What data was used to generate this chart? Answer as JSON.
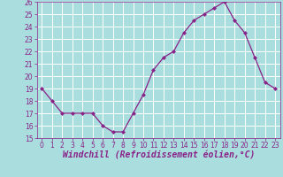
{
  "x": [
    0,
    1,
    2,
    3,
    4,
    5,
    6,
    7,
    8,
    9,
    10,
    11,
    12,
    13,
    14,
    15,
    16,
    17,
    18,
    19,
    20,
    21,
    22,
    23
  ],
  "y": [
    19,
    18,
    17,
    17,
    17,
    17,
    16,
    15.5,
    15.5,
    17,
    18.5,
    20.5,
    21.5,
    22,
    23.5,
    24.5,
    25,
    25.5,
    26,
    24.5,
    23.5,
    21.5,
    19.5,
    19
  ],
  "line_color": "#882288",
  "marker_color": "#882288",
  "bg_color": "#aadddd",
  "grid_color": "#cceeee",
  "xlabel": "Windchill (Refroidissement éolien,°C)",
  "xlabel_color": "#882288",
  "ylim": [
    15,
    26
  ],
  "xlim": [
    -0.5,
    23.5
  ],
  "yticks": [
    15,
    16,
    17,
    18,
    19,
    20,
    21,
    22,
    23,
    24,
    25,
    26
  ],
  "xticks": [
    0,
    1,
    2,
    3,
    4,
    5,
    6,
    7,
    8,
    9,
    10,
    11,
    12,
    13,
    14,
    15,
    16,
    17,
    18,
    19,
    20,
    21,
    22,
    23
  ],
  "tick_color": "#882288",
  "tick_label_fontsize": 5.5,
  "xlabel_fontsize": 7.0
}
